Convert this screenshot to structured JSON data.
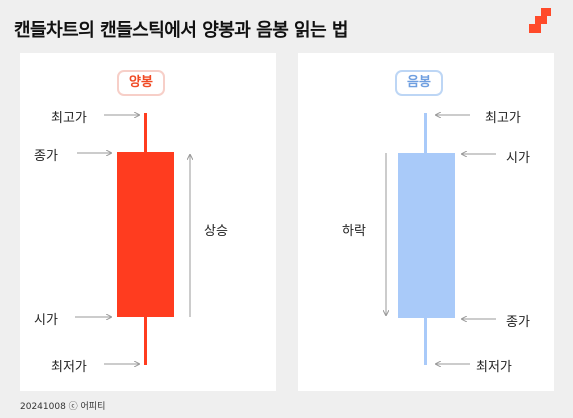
{
  "title": "캔들차트의 캔들스틱에서 양봉과 음봉 읽는 법",
  "colors": {
    "bullish": "#ff3c1f",
    "bearish": "#a9caf9",
    "arrow": "#999999",
    "logo": "#ff4a2a"
  },
  "bullish": {
    "badge": "양봉",
    "high": "최고가",
    "close": "종가",
    "open": "시가",
    "low": "최저가",
    "direction": "상승"
  },
  "bearish": {
    "badge": "음봉",
    "high": "최고가",
    "open": "시가",
    "close": "종가",
    "low": "최저가",
    "direction": "하락"
  },
  "footer": "20241008 ⓒ 어피티",
  "logo_icon": "brand-logo-icon"
}
